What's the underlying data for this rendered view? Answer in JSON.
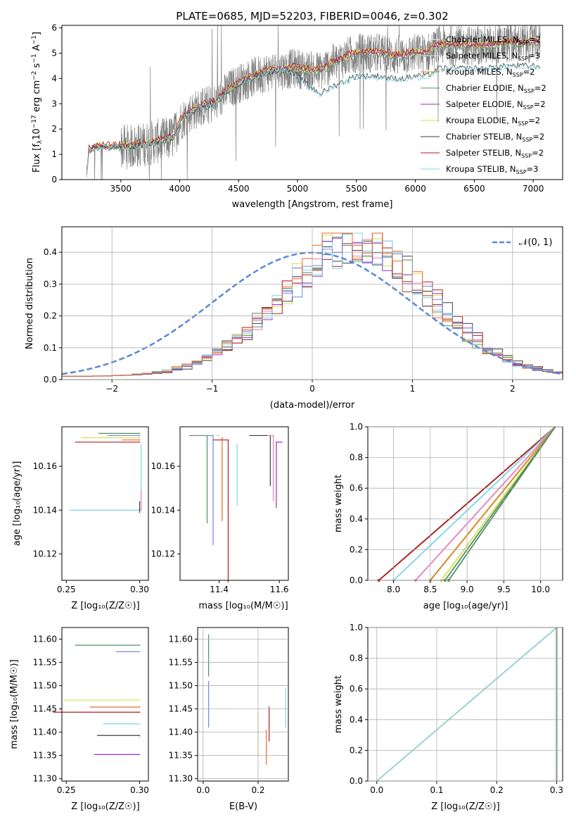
{
  "colors": {
    "data": "#7f7f7f",
    "chabrier_miles": "#f5f5f5",
    "salpeter_miles": "#dddddd",
    "kroupa_miles": "#d68a1d",
    "chabrier_elodie": "#4f8f5f",
    "salpeter_elodie": "#9b2fc0",
    "kroupa_elodie": "#d6e04a",
    "chabrier_stelib": "#3f3f3f",
    "salpeter_stelib": "#b01e1e",
    "kroupa_stelib": "#80d4e4",
    "normal": "#5b87d6",
    "extra_pink": "#e77fbf",
    "extra_orange": "#e66a2c",
    "extra_blue": "#6f88e6"
  },
  "chart_data": [
    {
      "type": "line",
      "title": "PLATE=0685, MJD=52203, FIBERID=0046, z=0.302",
      "xlabel": "wavelength [Angstrom, rest frame]",
      "ylabel_parts": [
        "Flux [f",
        "λ",
        "10",
        "−17",
        " erg cm",
        "−2",
        " s",
        "−1",
        " A",
        "−1",
        "]"
      ],
      "xlim": [
        3000,
        7250
      ],
      "ylim": [
        0,
        6.1
      ],
      "xticks": [
        "3500",
        "4000",
        "4500",
        "5000",
        "5500",
        "6000",
        "6500",
        "7000"
      ],
      "yticks": [
        "0",
        "1",
        "2",
        "3",
        "4",
        "5",
        "6"
      ],
      "grid": false,
      "legend_position": "top-right",
      "legend": [
        {
          "label": "Chabrier MILES, N",
          "sub": "SSP",
          "tail": "=2"
        },
        {
          "label": "Salpeter MILES, N",
          "sub": "SSP",
          "tail": "=3"
        },
        {
          "label": "Kroupa MILES, N",
          "sub": "SSP",
          "tail": "=2"
        },
        {
          "label": "Chabrier ELODIE, N",
          "sub": "SSP",
          "tail": "=2"
        },
        {
          "label": "Salpeter ELODIE, N",
          "sub": "SSP",
          "tail": "=2"
        },
        {
          "label": "Kroupa ELODIE, N",
          "sub": "SSP",
          "tail": "=2"
        },
        {
          "label": "Chabrier STELIB, N",
          "sub": "SSP",
          "tail": "=2"
        },
        {
          "label": "Salpeter STELIB, N",
          "sub": "SSP",
          "tail": "=2"
        },
        {
          "label": "Kroupa STELIB, N",
          "sub": "SSP",
          "tail": "=3"
        }
      ],
      "data_spectrum_range": [
        3210,
        7060
      ],
      "model_continuum": [
        {
          "x": 3210,
          "y": 0.2
        },
        {
          "x": 3230,
          "y": 1.15
        },
        {
          "x": 3300,
          "y": 1.3
        },
        {
          "x": 3400,
          "y": 1.28
        },
        {
          "x": 3500,
          "y": 1.3
        },
        {
          "x": 3600,
          "y": 1.3
        },
        {
          "x": 3700,
          "y": 1.4
        },
        {
          "x": 3800,
          "y": 1.5
        },
        {
          "x": 3900,
          "y": 1.6
        },
        {
          "x": 3950,
          "y": 1.7
        },
        {
          "x": 4000,
          "y": 2.3
        },
        {
          "x": 4100,
          "y": 2.7
        },
        {
          "x": 4200,
          "y": 2.9
        },
        {
          "x": 4300,
          "y": 3.0
        },
        {
          "x": 4400,
          "y": 3.5
        },
        {
          "x": 4500,
          "y": 3.8
        },
        {
          "x": 4600,
          "y": 4.0
        },
        {
          "x": 4700,
          "y": 4.2
        },
        {
          "x": 4800,
          "y": 4.3
        },
        {
          "x": 4900,
          "y": 4.35
        },
        {
          "x": 5000,
          "y": 4.4
        },
        {
          "x": 5100,
          "y": 4.3
        },
        {
          "x": 5200,
          "y": 4.3
        },
        {
          "x": 5300,
          "y": 4.6
        },
        {
          "x": 5400,
          "y": 4.8
        },
        {
          "x": 5500,
          "y": 5.0
        },
        {
          "x": 5600,
          "y": 5.0
        },
        {
          "x": 5700,
          "y": 5.0
        },
        {
          "x": 5800,
          "y": 4.9
        },
        {
          "x": 5900,
          "y": 4.9
        },
        {
          "x": 6000,
          "y": 5.0
        },
        {
          "x": 6100,
          "y": 5.0
        },
        {
          "x": 6200,
          "y": 5.3
        },
        {
          "x": 6300,
          "y": 5.3
        },
        {
          "x": 6400,
          "y": 5.3
        },
        {
          "x": 6500,
          "y": 5.3
        },
        {
          "x": 6600,
          "y": 5.3
        },
        {
          "x": 6700,
          "y": 5.35
        },
        {
          "x": 6800,
          "y": 5.4
        },
        {
          "x": 6900,
          "y": 5.4
        },
        {
          "x": 7000,
          "y": 5.4
        },
        {
          "x": 7060,
          "y": 5.4
        }
      ],
      "model_offsets": [
        0,
        0,
        0,
        -0.05,
        0.05,
        0.1,
        -0.9,
        0.1,
        -0.95
      ],
      "dip_models": [
        6,
        8
      ]
    },
    {
      "type": "line",
      "xlabel": "(data-model)/error",
      "ylabel": "Normed distribution",
      "xlim": [
        -2.5,
        2.5
      ],
      "ylim": [
        0,
        0.48
      ],
      "xticks": [
        {
          "v": -2,
          "t": "−2"
        },
        {
          "v": -1,
          "t": "−1"
        },
        {
          "v": 0,
          "t": "0"
        },
        {
          "v": 1,
          "t": "1"
        },
        {
          "v": 2,
          "t": "2"
        }
      ],
      "yticks": [
        {
          "v": 0,
          "t": "0.0"
        },
        {
          "v": 0.1,
          "t": "0.1"
        },
        {
          "v": 0.2,
          "t": "0.2"
        },
        {
          "v": 0.3,
          "t": "0.3"
        },
        {
          "v": 0.4,
          "t": "0.4"
        }
      ],
      "grid": true,
      "legend_position": "top-right",
      "legend": "𝒩(0, 1)",
      "normal_curve": {
        "mean": 0,
        "sigma": 1
      },
      "histogram": {
        "bin_width": 0.1,
        "center_mean": 0.45,
        "center_sigma": 0.75,
        "peak": 0.41
      }
    },
    {
      "type": "scatter",
      "xlabel": "Z [log₁₀(Z/Z☉)]",
      "ylabel": "age  [log₁₀(age/yr)]",
      "xlim": [
        0.247,
        0.306
      ],
      "ylim": [
        10.108,
        10.178
      ],
      "xticks": [
        "0.25",
        "0.30"
      ],
      "yticks": [
        "10.12",
        "10.14",
        "10.16"
      ],
      "grid": false,
      "points": [
        {
          "x": 0.3,
          "y": 10.175,
          "xerr": [
            0.028,
            0.0
          ],
          "yerr": [
            0.0,
            0.0
          ]
        },
        {
          "x": 0.3,
          "y": 10.174,
          "xerr": [
            0.022,
            0.0
          ],
          "yerr": [
            0.0,
            0.0
          ]
        },
        {
          "x": 0.3,
          "y": 10.173,
          "xerr": [
            0.04,
            0.0
          ],
          "yerr": [
            0.0,
            0.0
          ]
        },
        {
          "x": 0.3,
          "y": 10.172,
          "xerr": [
            0.012,
            0.0
          ],
          "yerr": [
            0.0,
            0.0
          ]
        },
        {
          "x": 0.3,
          "y": 10.171,
          "xerr": [
            0.044,
            0.0
          ],
          "yerr": [
            0.0,
            0.0
          ]
        },
        {
          "x": 0.301,
          "y": 10.14,
          "xerr": [
            0.049,
            0.0
          ],
          "yerr": [
            0.0,
            0.03
          ]
        },
        {
          "x": 0.3,
          "y": 10.139,
          "xerr": [
            0.0,
            0.0
          ],
          "yerr": [
            0.0,
            0.005
          ]
        },
        {
          "x": 0.301,
          "y": 10.14,
          "xerr": [
            0.0,
            0.0
          ],
          "yerr": [
            0.0,
            0.009
          ]
        }
      ]
    },
    {
      "type": "scatter",
      "xlabel": "mass [log₁₀(M/M☉)]",
      "xlim": [
        11.27,
        11.63
      ],
      "ylim": [
        10.108,
        10.178
      ],
      "xticks": [
        "11.4",
        "11.6"
      ],
      "yticks": [
        "10.12",
        "10.14",
        "10.16"
      ],
      "grid": false,
      "points": [
        {
          "x": 11.36,
          "y": 10.174,
          "xerr": [
            0.06,
            0.0
          ],
          "yerr": [
            0.04,
            0.0
          ]
        },
        {
          "x": 11.38,
          "y": 10.174,
          "xerr": [
            0.03,
            0.0
          ],
          "yerr": [
            0.05,
            0.0
          ]
        },
        {
          "x": 11.4,
          "y": 10.174,
          "xerr": [
            0.01,
            0.0
          ],
          "yerr": [
            0.0,
            0.0
          ]
        },
        {
          "x": 11.41,
          "y": 10.173,
          "xerr": [
            0.0,
            0.0
          ],
          "yerr": [
            0.038,
            0.0
          ]
        },
        {
          "x": 11.43,
          "y": 10.172,
          "xerr": [
            0.05,
            0.0
          ],
          "yerr": [
            0.065,
            0.0
          ]
        },
        {
          "x": 11.46,
          "y": 10.17,
          "xerr": [
            0.0,
            0.0
          ],
          "yerr": [
            0.028,
            0.0
          ]
        },
        {
          "x": 11.57,
          "y": 10.174,
          "xerr": [
            0.07,
            0.0
          ],
          "yerr": [
            0.023,
            0.0
          ]
        },
        {
          "x": 11.58,
          "y": 10.174,
          "xerr": [
            0.02,
            0.0
          ],
          "yerr": [
            0.03,
            0.0
          ]
        },
        {
          "x": 11.59,
          "y": 10.171,
          "xerr": [
            0.0,
            0.02
          ],
          "yerr": [
            0.03,
            0.0
          ]
        }
      ]
    },
    {
      "type": "line",
      "xlabel": "age  [log₁₀(age/yr)]",
      "ylabel": "mass weight",
      "xlim": [
        7.65,
        10.3
      ],
      "ylim": [
        0,
        1
      ],
      "xticks": [
        "8.0",
        "8.5",
        "9.0",
        "9.5",
        "10.0"
      ],
      "yticks": [
        "0.0",
        "0.2",
        "0.4",
        "0.6",
        "0.8",
        "1.0"
      ],
      "grid": true,
      "cumulative_start_ages": [
        7.8,
        7.8,
        8.0,
        8.3,
        8.5,
        8.5,
        8.65,
        8.7,
        8.75
      ],
      "end_age": 10.2
    },
    {
      "type": "scatter",
      "xlabel": "Z [log₁₀(Z/Z☉)]",
      "ylabel": "mass [log₁₀(M/M☉)]",
      "xlim": [
        0.247,
        0.306
      ],
      "ylim": [
        11.295,
        11.625
      ],
      "xticks": [
        "0.25",
        "0.30"
      ],
      "yticks": [
        "11.30",
        "11.35",
        "11.40",
        "11.45",
        "11.50",
        "11.55",
        "11.60"
      ],
      "grid": false,
      "points": [
        {
          "x": 0.3,
          "y": 11.587,
          "xerr": [
            0.044,
            0.0
          ],
          "yerr": [
            0.0,
            0.0
          ]
        },
        {
          "x": 0.3,
          "y": 11.573,
          "xerr": [
            0.016,
            0.0
          ],
          "yerr": [
            0.0,
            0.0
          ]
        },
        {
          "x": 0.3,
          "y": 11.469,
          "xerr": [
            0.052,
            0.0
          ],
          "yerr": [
            0.0,
            0.0
          ]
        },
        {
          "x": 0.3,
          "y": 11.454,
          "xerr": [
            0.034,
            0.0
          ],
          "yerr": [
            0.0,
            0.0
          ]
        },
        {
          "x": 0.3,
          "y": 11.443,
          "xerr": [
            0.059,
            0.0
          ],
          "yerr": [
            0.0,
            0.0
          ]
        },
        {
          "x": 0.3,
          "y": 11.418,
          "xerr": [
            0.025,
            0.0
          ],
          "yerr": [
            0.0,
            0.0
          ]
        },
        {
          "x": 0.3,
          "y": 11.393,
          "xerr": [
            0.029,
            0.0
          ],
          "yerr": [
            0.0,
            0.0
          ]
        },
        {
          "x": 0.3,
          "y": 11.39,
          "xerr": [
            0.0,
            0.0
          ],
          "yerr": [
            0.0,
            0.0
          ]
        },
        {
          "x": 0.3,
          "y": 11.352,
          "xerr": [
            0.031,
            0.0
          ],
          "yerr": [
            0.0,
            0.0
          ]
        }
      ]
    },
    {
      "type": "scatter",
      "xlabel": "E(B-V)",
      "xlim": [
        -0.02,
        0.31
      ],
      "ylim": [
        11.295,
        11.625
      ],
      "xticks": [
        "0.0",
        "0.2"
      ],
      "grid": true,
      "points": [
        {
          "x": 0.02,
          "y": 11.57,
          "xerr": [
            0.0,
            0.0
          ],
          "yerr": [
            0.05,
            0.04
          ]
        },
        {
          "x": 0.02,
          "y": 11.46,
          "xerr": [
            0.0,
            0.0
          ],
          "yerr": [
            0.05,
            0.05
          ]
        },
        {
          "x": 0.2,
          "y": 11.4,
          "xerr": [
            0.0,
            0.0
          ],
          "yerr": [
            0.05,
            0.045
          ]
        },
        {
          "x": 0.23,
          "y": 11.37,
          "xerr": [
            0.0,
            0.0
          ],
          "yerr": [
            0.04,
            0.035
          ]
        },
        {
          "x": 0.24,
          "y": 11.42,
          "xerr": [
            0.0,
            0.0
          ],
          "yerr": [
            0.04,
            0.035
          ]
        },
        {
          "x": 0.3,
          "y": 11.45,
          "xerr": [
            0.0,
            0.0
          ],
          "yerr": [
            0.04,
            0.045
          ]
        }
      ]
    },
    {
      "type": "line",
      "xlabel": "Z [log₁₀(Z/Z☉)]",
      "ylabel": "mass weight",
      "xlim": [
        -0.015,
        0.31
      ],
      "ylim": [
        0,
        1
      ],
      "xticks": [
        "0.0",
        "0.1",
        "0.2",
        "0.3"
      ],
      "yticks": [
        "0.0",
        "0.2",
        "0.4",
        "0.6",
        "0.8",
        "1.0"
      ],
      "grid": true,
      "cumulative_start_Z": 0.0,
      "end_Z": 0.3
    }
  ]
}
